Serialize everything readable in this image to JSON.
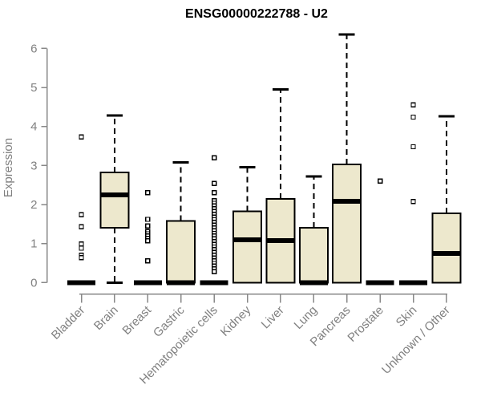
{
  "chart_data": {
    "type": "boxplot",
    "title": "ENSG00000222788 - U2",
    "ylabel": "Expression",
    "xlabel": "",
    "ylim": [
      0,
      6.4
    ],
    "yticks": [
      0,
      1,
      2,
      3,
      4,
      5,
      6
    ],
    "grid": false,
    "legend": "none",
    "colors": {
      "box_fill": "#EDE8CD",
      "box_border": "#000000",
      "median": "#000000",
      "whisker": "#000000",
      "outlier_stroke": "#000000",
      "outlier_fill": "#ffffff",
      "axis": "#888888",
      "axis_text": "#808080",
      "title": "#000000",
      "background": "#ffffff"
    },
    "categories": [
      "Bladder",
      "Brain",
      "Breast",
      "Gastric",
      "Hematopoietic cells",
      "Kidney",
      "Liver",
      "Lung",
      "Pancreas",
      "Prostate",
      "Skin",
      "Unknown / Other"
    ],
    "series": [
      {
        "name": "Bladder",
        "whisker_low": 0,
        "q1": 0,
        "median": 0,
        "q3": 0,
        "whisker_high": 0,
        "outliers": [
          3.73,
          1.74,
          1.43,
          0.99,
          0.88,
          0.7,
          0.64
        ]
      },
      {
        "name": "Brain",
        "whisker_low": 0,
        "q1": 1.4,
        "median": 2.25,
        "q3": 2.82,
        "whisker_high": 4.28,
        "outliers": []
      },
      {
        "name": "Breast",
        "whisker_low": 0,
        "q1": 0,
        "median": 0,
        "q3": 0,
        "whisker_high": 0,
        "outliers": [
          2.3,
          1.62,
          1.45,
          1.31,
          1.25,
          1.19,
          1.13,
          1.07,
          0.56
        ]
      },
      {
        "name": "Gastric",
        "whisker_low": 0,
        "q1": 0,
        "median": 0,
        "q3": 1.58,
        "whisker_high": 3.08,
        "outliers": []
      },
      {
        "name": "Hematopoietic cells",
        "whisker_low": 0,
        "q1": 0,
        "median": 0,
        "q3": 0,
        "whisker_high": 0,
        "outliers": [
          3.2,
          2.54,
          2.3,
          2.1,
          2.03,
          1.96,
          1.89,
          1.82,
          1.75,
          1.68,
          1.61,
          1.54,
          1.47,
          1.4,
          1.33,
          1.26,
          1.19,
          1.12,
          1.05,
          0.98,
          0.91,
          0.84,
          0.77,
          0.7,
          0.63,
          0.56,
          0.49,
          0.42,
          0.35,
          0.28
        ]
      },
      {
        "name": "Kidney",
        "whisker_low": 0,
        "q1": 0,
        "median": 1.1,
        "q3": 1.83,
        "whisker_high": 2.96,
        "outliers": []
      },
      {
        "name": "Liver",
        "whisker_low": 0,
        "q1": 0,
        "median": 1.07,
        "q3": 2.14,
        "whisker_high": 4.95,
        "outliers": []
      },
      {
        "name": "Lung",
        "whisker_low": 0,
        "q1": 0,
        "median": 0,
        "q3": 1.4,
        "whisker_high": 2.72,
        "outliers": []
      },
      {
        "name": "Pancreas",
        "whisker_low": 0,
        "q1": 0,
        "median": 2.08,
        "q3": 3.03,
        "whisker_high": 6.36,
        "outliers": []
      },
      {
        "name": "Prostate",
        "whisker_low": 0,
        "q1": 0,
        "median": 0,
        "q3": 0,
        "whisker_high": 0,
        "outliers": [
          2.6
        ]
      },
      {
        "name": "Skin",
        "whisker_low": 0,
        "q1": 0,
        "median": 0,
        "q3": 0,
        "whisker_high": 0,
        "outliers": [
          4.55,
          4.24,
          3.48,
          2.08
        ]
      },
      {
        "name": "Unknown / Other",
        "whisker_low": 0,
        "q1": 0,
        "median": 0.75,
        "q3": 1.77,
        "whisker_high": 4.26,
        "outliers": []
      }
    ]
  }
}
